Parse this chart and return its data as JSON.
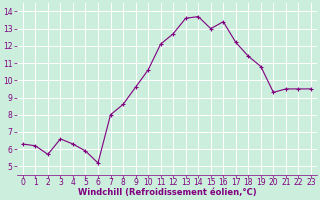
{
  "x": [
    0,
    1,
    2,
    3,
    4,
    5,
    6,
    7,
    8,
    9,
    10,
    11,
    12,
    13,
    14,
    15,
    16,
    17,
    18,
    19,
    20,
    21,
    22,
    23
  ],
  "y": [
    6.3,
    6.2,
    5.7,
    6.6,
    6.3,
    5.9,
    5.2,
    8.0,
    8.6,
    9.6,
    10.6,
    12.1,
    12.7,
    13.6,
    13.7,
    13.0,
    13.4,
    12.2,
    11.4,
    10.8,
    9.3,
    9.5,
    9.5,
    9.5
  ],
  "xlabel": "Windchill (Refroidissement éolien,°C)",
  "xlim": [
    -0.5,
    23.5
  ],
  "ylim": [
    4.5,
    14.5
  ],
  "yticks": [
    5,
    6,
    7,
    8,
    9,
    10,
    11,
    12,
    13,
    14
  ],
  "xticks": [
    0,
    1,
    2,
    3,
    4,
    5,
    6,
    7,
    8,
    9,
    10,
    11,
    12,
    13,
    14,
    15,
    16,
    17,
    18,
    19,
    20,
    21,
    22,
    23
  ],
  "line_color": "#800080",
  "marker": "+",
  "bg_color": "#cceedd",
  "grid_color": "#ffffff",
  "xlabel_color": "#800080",
  "tick_color": "#800080",
  "xlabel_fontsize": 6,
  "tick_fontsize": 5.5
}
